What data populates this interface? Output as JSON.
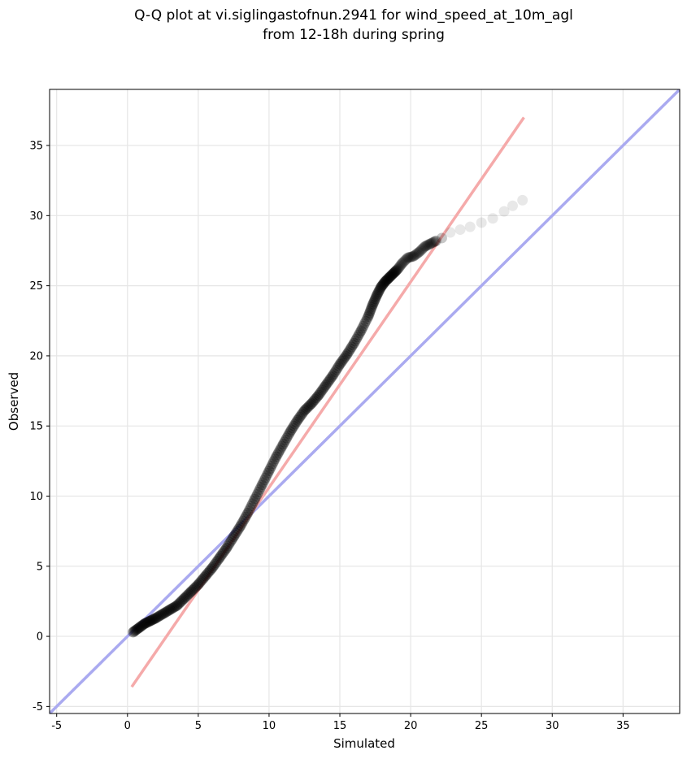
{
  "chart_data": {
    "type": "scatter",
    "title_line1": "Q-Q plot at vi.siglingastofnun.2941 for wind_speed_at_10m_agl",
    "title_line2": "from 12-18h during spring",
    "xlabel": "Simulated",
    "ylabel": "Observed",
    "xlim": [
      -5.5,
      39
    ],
    "ylim": [
      -5.5,
      39
    ],
    "xticks": [
      -5,
      0,
      5,
      10,
      15,
      20,
      25,
      30,
      35
    ],
    "yticks": [
      -5,
      0,
      5,
      10,
      15,
      20,
      25,
      30,
      35
    ],
    "grid": true,
    "colors": {
      "points": "#000000",
      "identity_line": "#aaaaf0",
      "fit_line": "#f5aaaa",
      "grid": "#e6e6e6"
    },
    "identity_line": {
      "x": [
        -5.5,
        39
      ],
      "y": [
        -5.5,
        39
      ]
    },
    "fit_line": {
      "x": [
        0.3,
        28
      ],
      "y": [
        -3.6,
        37
      ]
    },
    "quantiles": {
      "x": [
        0.4,
        0.8,
        1.2,
        1.6,
        2.0,
        2.5,
        3.0,
        3.5,
        4.0,
        4.5,
        5.0,
        5.5,
        6.0,
        6.5,
        7.0,
        7.5,
        8.0,
        8.5,
        9.0,
        9.5,
        10.0,
        10.5,
        11.0,
        11.5,
        12.0,
        12.5,
        13.0,
        13.5,
        14.0,
        14.5,
        15.0,
        15.5,
        16.0,
        16.5,
        17.0,
        17.3,
        17.6,
        17.9,
        18.2,
        18.5,
        18.8,
        19.1,
        19.4,
        19.8,
        20.2,
        20.6,
        21.0,
        21.4,
        21.8,
        22.2,
        22.8,
        23.5,
        24.2,
        25.0,
        25.8,
        26.6,
        27.2,
        27.9
      ],
      "y": [
        0.3,
        0.6,
        0.9,
        1.1,
        1.3,
        1.6,
        1.9,
        2.2,
        2.7,
        3.2,
        3.7,
        4.3,
        4.9,
        5.6,
        6.3,
        7.1,
        7.9,
        8.8,
        9.8,
        10.8,
        11.8,
        12.8,
        13.7,
        14.6,
        15.4,
        16.1,
        16.6,
        17.2,
        17.9,
        18.6,
        19.4,
        20.1,
        20.9,
        21.8,
        22.8,
        23.6,
        24.3,
        24.9,
        25.3,
        25.6,
        25.9,
        26.2,
        26.6,
        27.0,
        27.1,
        27.4,
        27.8,
        28.0,
        28.2,
        28.4,
        28.8,
        29.0,
        29.2,
        29.5,
        29.8,
        30.3,
        30.7,
        31.1
      ]
    }
  }
}
